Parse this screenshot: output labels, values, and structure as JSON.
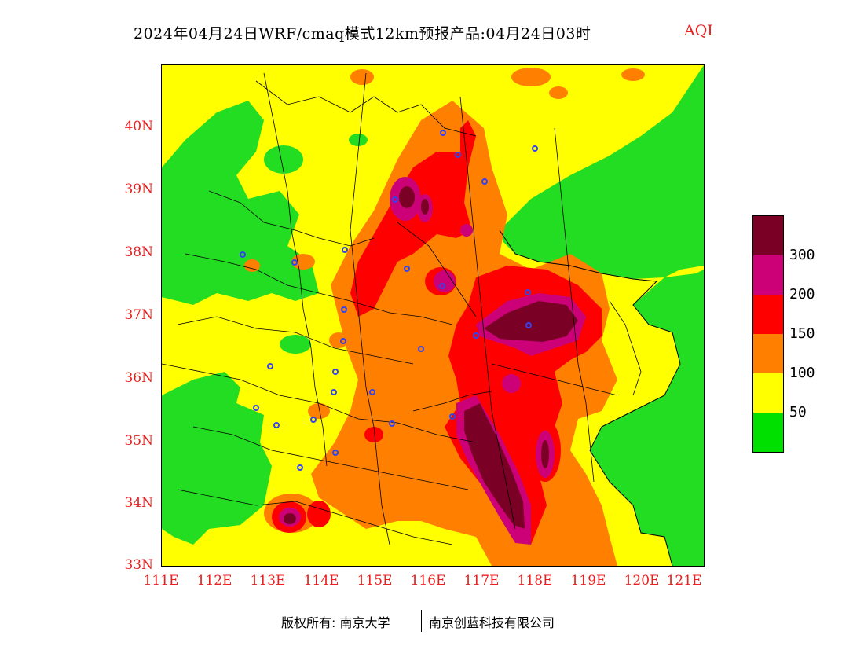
{
  "title": {
    "main": "2024年04月24日WRF/cmaq模式12km预报产品:04月24日03时",
    "variable": "AQI"
  },
  "axes": {
    "y_ticks": [
      "40N",
      "39N",
      "38N",
      "37N",
      "36N",
      "35N",
      "34N",
      "33N"
    ],
    "x_ticks": [
      "111E",
      "112E",
      "113E",
      "114E",
      "115E",
      "116E",
      "117E",
      "118E",
      "119E",
      "120E",
      "121E"
    ]
  },
  "legend": {
    "colors": [
      "#7b0026",
      "#cc0077",
      "#ff0000",
      "#ff7f00",
      "#ffff00",
      "#00e000"
    ],
    "labels": [
      "300",
      "200",
      "150",
      "100",
      "50"
    ]
  },
  "footer": {
    "left": "版权所有: 南京大学",
    "right": "南京创蓝科技有限公司"
  },
  "colors": {
    "sea": "#22dd22",
    "tick_label": "#e8201f",
    "site_marker": "#3344ee"
  }
}
